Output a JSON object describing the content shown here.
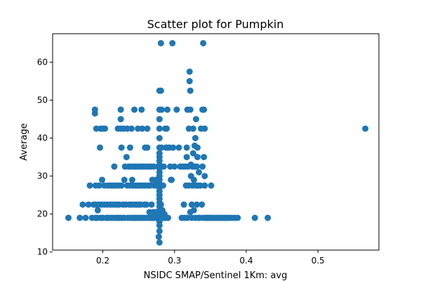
{
  "chart_data": {
    "type": "scatter",
    "title": "Scatter plot for Pumpkin",
    "xlabel": "NSIDC SMAP/Sentinel 1Km: avg",
    "ylabel": "Average",
    "xlim": [
      0.13,
      0.585
    ],
    "ylim": [
      10.5,
      67.5
    ],
    "xticks": [
      0.2,
      0.3,
      0.4,
      0.5
    ],
    "xtick_labels": [
      "0.2",
      "0.3",
      "0.4",
      "0.5"
    ],
    "yticks": [
      10,
      20,
      30,
      40,
      50,
      60
    ],
    "ytick_labels": [
      "10",
      "20",
      "30",
      "40",
      "50",
      "60"
    ],
    "grid": false,
    "marker_color": "#1f77b4",
    "points": [
      [
        0.152,
        19.0
      ],
      [
        0.168,
        19.0
      ],
      [
        0.172,
        22.5
      ],
      [
        0.176,
        19.0
      ],
      [
        0.18,
        22.5
      ],
      [
        0.182,
        27.5
      ],
      [
        0.185,
        19.0
      ],
      [
        0.187,
        22.5
      ],
      [
        0.189,
        47.5
      ],
      [
        0.189,
        46.5
      ],
      [
        0.19,
        19.0
      ],
      [
        0.19,
        22.5
      ],
      [
        0.19,
        27.5
      ],
      [
        0.191,
        42.5
      ],
      [
        0.192,
        19.0
      ],
      [
        0.193,
        21.0
      ],
      [
        0.194,
        22.5
      ],
      [
        0.195,
        27.5
      ],
      [
        0.196,
        37.5
      ],
      [
        0.197,
        19.0
      ],
      [
        0.197,
        42.5
      ],
      [
        0.198,
        22.5
      ],
      [
        0.199,
        29.0
      ],
      [
        0.2,
        42.5
      ],
      [
        0.2,
        19.0
      ],
      [
        0.202,
        27.5
      ],
      [
        0.202,
        22.5
      ],
      [
        0.203,
        42.5
      ],
      [
        0.205,
        19.0
      ],
      [
        0.206,
        22.5
      ],
      [
        0.207,
        27.5
      ],
      [
        0.208,
        19.0
      ],
      [
        0.21,
        22.5
      ],
      [
        0.211,
        27.5
      ],
      [
        0.212,
        19.0
      ],
      [
        0.213,
        22.5
      ],
      [
        0.214,
        27.5
      ],
      [
        0.215,
        19.0
      ],
      [
        0.216,
        32.5
      ],
      [
        0.217,
        22.5
      ],
      [
        0.218,
        27.5
      ],
      [
        0.219,
        19.0
      ],
      [
        0.22,
        22.5
      ],
      [
        0.221,
        19.0
      ],
      [
        0.221,
        42.5
      ],
      [
        0.222,
        27.5
      ],
      [
        0.223,
        22.5
      ],
      [
        0.224,
        19.0
      ],
      [
        0.225,
        42.5
      ],
      [
        0.225,
        45.0
      ],
      [
        0.225,
        47.5
      ],
      [
        0.226,
        37.5
      ],
      [
        0.226,
        27.5
      ],
      [
        0.227,
        19.0
      ],
      [
        0.228,
        22.5
      ],
      [
        0.229,
        42.5
      ],
      [
        0.23,
        19.0
      ],
      [
        0.23,
        29.0
      ],
      [
        0.231,
        32.5
      ],
      [
        0.232,
        22.5
      ],
      [
        0.233,
        35.0
      ],
      [
        0.234,
        42.5
      ],
      [
        0.234,
        27.5
      ],
      [
        0.235,
        19.0
      ],
      [
        0.236,
        32.5
      ],
      [
        0.237,
        22.5
      ],
      [
        0.238,
        37.5
      ],
      [
        0.238,
        27.5
      ],
      [
        0.239,
        19.0
      ],
      [
        0.239,
        32.5
      ],
      [
        0.24,
        22.5
      ],
      [
        0.24,
        42.5
      ],
      [
        0.241,
        29.0
      ],
      [
        0.242,
        19.0
      ],
      [
        0.242,
        27.5
      ],
      [
        0.243,
        32.5
      ],
      [
        0.244,
        22.5
      ],
      [
        0.244,
        47.5
      ],
      [
        0.245,
        19.0
      ],
      [
        0.246,
        27.5
      ],
      [
        0.246,
        32.5
      ],
      [
        0.247,
        22.5
      ],
      [
        0.248,
        19.0
      ],
      [
        0.249,
        42.5
      ],
      [
        0.249,
        27.5
      ],
      [
        0.25,
        32.5
      ],
      [
        0.25,
        22.5
      ],
      [
        0.251,
        19.0
      ],
      [
        0.252,
        27.5
      ],
      [
        0.253,
        32.5
      ],
      [
        0.253,
        22.5
      ],
      [
        0.254,
        47.5
      ],
      [
        0.254,
        19.0
      ],
      [
        0.255,
        42.5
      ],
      [
        0.255,
        27.5
      ],
      [
        0.256,
        32.5
      ],
      [
        0.257,
        19.0
      ],
      [
        0.258,
        22.5
      ],
      [
        0.259,
        37.5
      ],
      [
        0.259,
        27.5
      ],
      [
        0.26,
        19.0
      ],
      [
        0.26,
        32.5
      ],
      [
        0.261,
        22.5
      ],
      [
        0.262,
        37.5
      ],
      [
        0.262,
        42.5
      ],
      [
        0.263,
        27.5
      ],
      [
        0.264,
        19.0
      ],
      [
        0.264,
        32.5
      ],
      [
        0.265,
        20.5
      ],
      [
        0.266,
        27.5
      ],
      [
        0.267,
        19.0
      ],
      [
        0.267,
        32.5
      ],
      [
        0.268,
        22.5
      ],
      [
        0.269,
        29.0
      ],
      [
        0.27,
        19.0
      ],
      [
        0.27,
        20.5
      ],
      [
        0.271,
        32.5
      ],
      [
        0.272,
        27.5
      ],
      [
        0.272,
        19.0
      ],
      [
        0.273,
        20.5
      ],
      [
        0.274,
        29.0
      ],
      [
        0.275,
        19.0
      ],
      [
        0.275,
        27.5
      ],
      [
        0.276,
        20.5
      ],
      [
        0.277,
        32.5
      ],
      [
        0.277,
        19.0
      ],
      [
        0.278,
        14.0
      ],
      [
        0.279,
        15.5
      ],
      [
        0.279,
        12.5
      ],
      [
        0.279,
        17.0
      ],
      [
        0.279,
        18.0
      ],
      [
        0.279,
        20.0
      ],
      [
        0.279,
        21.0
      ],
      [
        0.279,
        22.0
      ],
      [
        0.279,
        23.0
      ],
      [
        0.279,
        24.0
      ],
      [
        0.279,
        25.0
      ],
      [
        0.279,
        26.0
      ],
      [
        0.279,
        27.0
      ],
      [
        0.279,
        28.0
      ],
      [
        0.279,
        29.0
      ],
      [
        0.279,
        30.0
      ],
      [
        0.279,
        31.0
      ],
      [
        0.279,
        32.0
      ],
      [
        0.279,
        33.0
      ],
      [
        0.279,
        34.0
      ],
      [
        0.279,
        35.0
      ],
      [
        0.279,
        36.0
      ],
      [
        0.279,
        37.5
      ],
      [
        0.279,
        40.0
      ],
      [
        0.279,
        42.5
      ],
      [
        0.279,
        45.0
      ],
      [
        0.279,
        47.5
      ],
      [
        0.279,
        52.5
      ],
      [
        0.281,
        52.5
      ],
      [
        0.281,
        65.0
      ],
      [
        0.28,
        19.0
      ],
      [
        0.281,
        22.5
      ],
      [
        0.282,
        47.5
      ],
      [
        0.282,
        37.5
      ],
      [
        0.283,
        19.0
      ],
      [
        0.283,
        21.0
      ],
      [
        0.284,
        27.5
      ],
      [
        0.285,
        32.5
      ],
      [
        0.286,
        19.0
      ],
      [
        0.286,
        20.0
      ],
      [
        0.287,
        42.5
      ],
      [
        0.288,
        37.5
      ],
      [
        0.288,
        19.0
      ],
      [
        0.289,
        42.5
      ],
      [
        0.29,
        37.5
      ],
      [
        0.29,
        47.5
      ],
      [
        0.291,
        19.0
      ],
      [
        0.293,
        37.5
      ],
      [
        0.294,
        32.5
      ],
      [
        0.295,
        29.0
      ],
      [
        0.296,
        29.0
      ],
      [
        0.297,
        65.0
      ],
      [
        0.298,
        37.5
      ],
      [
        0.3,
        32.5
      ],
      [
        0.303,
        47.5
      ],
      [
        0.306,
        37.5
      ],
      [
        0.308,
        32.5
      ],
      [
        0.31,
        19.0
      ],
      [
        0.312,
        32.5
      ],
      [
        0.313,
        22.5
      ],
      [
        0.314,
        19.0
      ],
      [
        0.315,
        32.5
      ],
      [
        0.316,
        27.5
      ],
      [
        0.317,
        35.0
      ],
      [
        0.317,
        37.5
      ],
      [
        0.318,
        47.5
      ],
      [
        0.318,
        19.0
      ],
      [
        0.319,
        32.5
      ],
      [
        0.32,
        27.5
      ],
      [
        0.32,
        42.5
      ],
      [
        0.321,
        55.0
      ],
      [
        0.321,
        57.5
      ],
      [
        0.322,
        52.5
      ],
      [
        0.322,
        47.5
      ],
      [
        0.322,
        20.5
      ],
      [
        0.323,
        30.0
      ],
      [
        0.323,
        33.0
      ],
      [
        0.324,
        19.0
      ],
      [
        0.324,
        22.5
      ],
      [
        0.325,
        27.5
      ],
      [
        0.325,
        32.5
      ],
      [
        0.326,
        36.0
      ],
      [
        0.326,
        42.5
      ],
      [
        0.327,
        29.0
      ],
      [
        0.327,
        21.0
      ],
      [
        0.328,
        32.5
      ],
      [
        0.328,
        38.0
      ],
      [
        0.329,
        40.0
      ],
      [
        0.329,
        19.0
      ],
      [
        0.33,
        27.5
      ],
      [
        0.33,
        45.0
      ],
      [
        0.331,
        32.5
      ],
      [
        0.331,
        22.5
      ],
      [
        0.332,
        35.0
      ],
      [
        0.332,
        37.5
      ],
      [
        0.333,
        19.0
      ],
      [
        0.333,
        27.5
      ],
      [
        0.334,
        31.0
      ],
      [
        0.335,
        19.0
      ],
      [
        0.336,
        27.5
      ],
      [
        0.337,
        42.5
      ],
      [
        0.338,
        22.5
      ],
      [
        0.339,
        47.5
      ],
      [
        0.339,
        32.5
      ],
      [
        0.34,
        65.0
      ],
      [
        0.34,
        19.0
      ],
      [
        0.341,
        35.0
      ],
      [
        0.341,
        47.5
      ],
      [
        0.342,
        27.5
      ],
      [
        0.342,
        42.5
      ],
      [
        0.342,
        30.0
      ],
      [
        0.343,
        19.0
      ],
      [
        0.345,
        19.0
      ],
      [
        0.347,
        19.0
      ],
      [
        0.349,
        19.0
      ],
      [
        0.351,
        27.5
      ],
      [
        0.352,
        19.0
      ],
      [
        0.355,
        19.0
      ],
      [
        0.358,
        19.0
      ],
      [
        0.361,
        19.0
      ],
      [
        0.364,
        19.0
      ],
      [
        0.367,
        19.0
      ],
      [
        0.37,
        19.0
      ],
      [
        0.373,
        19.0
      ],
      [
        0.376,
        19.0
      ],
      [
        0.38,
        19.0
      ],
      [
        0.384,
        19.0
      ],
      [
        0.388,
        19.0
      ],
      [
        0.412,
        19.0
      ],
      [
        0.43,
        19.0
      ],
      [
        0.566,
        42.5
      ]
    ]
  }
}
